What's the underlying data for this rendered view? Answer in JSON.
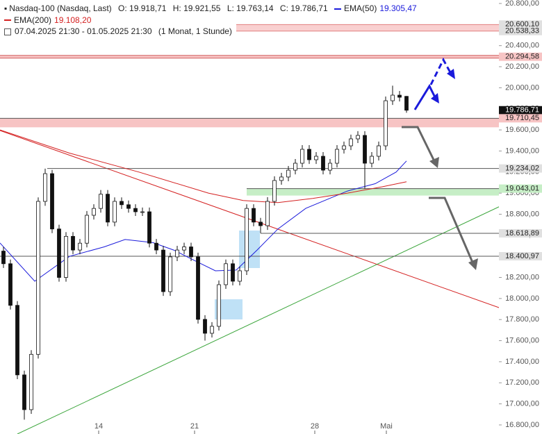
{
  "chart_data": {
    "type": "candlestick",
    "title": "Nasdaq-100 (Nasdaq, Last)",
    "ohlc_text": [
      "O: 19.918,71",
      "H: 19.921,55",
      "L: 19.763,14",
      "C: 19.786,71"
    ],
    "period": "07.04.2025 21:30 - 01.05.2025 21:30",
    "interval": "(1 Monat, 1 Stunde)",
    "x": [
      1,
      3,
      5,
      7,
      9,
      11,
      13,
      15,
      17,
      19,
      21,
      23,
      25,
      27,
      29,
      31,
      33,
      35,
      37,
      39,
      41,
      43,
      45,
      47,
      49,
      51,
      53,
      55,
      57,
      59,
      61,
      63,
      65,
      67,
      69,
      71,
      73,
      75,
      77,
      79,
      81,
      83,
      85,
      87,
      89,
      91,
      93,
      95,
      97,
      99,
      101,
      103,
      105,
      107,
      109,
      111,
      113,
      115,
      117
    ],
    "open": [
      18450,
      18330,
      17935,
      17275,
      16945,
      17470,
      18922,
      19185,
      18660,
      18200,
      18590,
      18460,
      18525,
      18790,
      18855,
      18990,
      18725,
      18922,
      18890,
      18855,
      18823,
      18823,
      18525,
      18460,
      18065,
      18395,
      18460,
      18490,
      18395,
      17802,
      17670,
      17736,
      18131,
      18330,
      18164,
      18263,
      18855,
      18725,
      18691,
      18922,
      19120,
      19153,
      19218,
      19284,
      19416,
      19317,
      19350,
      19218,
      19284,
      19416,
      19449,
      19515,
      19548,
      19284,
      19350,
      19449,
      19877,
      19930,
      19918.71
    ],
    "high": [
      18490,
      18370,
      17975,
      17315,
      17510,
      18960,
      19232,
      19220,
      18700,
      18630,
      18630,
      18565,
      18830,
      18895,
      19030,
      19030,
      18960,
      18960,
      18930,
      18895,
      18863,
      18863,
      18565,
      18500,
      18435,
      18500,
      18530,
      18530,
      18435,
      17842,
      17776,
      18171,
      18370,
      18370,
      18303,
      18895,
      18895,
      18765,
      18962,
      19160,
      19193,
      19258,
      19324,
      19456,
      19456,
      19390,
      19390,
      19324,
      19456,
      19489,
      19555,
      19588,
      19588,
      19390,
      19489,
      19917,
      20020,
      19970,
      19921.55
    ],
    "low": [
      18290,
      17895,
      17235,
      16850,
      16905,
      17430,
      18880,
      18620,
      18160,
      18160,
      18420,
      18420,
      18485,
      18750,
      18815,
      18685,
      18685,
      18850,
      18815,
      18783,
      18783,
      18485,
      18420,
      18025,
      18025,
      18355,
      18420,
      18355,
      17762,
      17600,
      17630,
      17696,
      18091,
      18124,
      18124,
      18223,
      18685,
      18620,
      18651,
      18882,
      19080,
      19113,
      19178,
      19244,
      19277,
      19277,
      19178,
      19178,
      19244,
      19376,
      19409,
      19475,
      19043,
      19244,
      19310,
      19409,
      19837,
      19870,
      19763.14
    ],
    "close": [
      18330,
      17935,
      17275,
      16945,
      17470,
      18922,
      19185,
      18660,
      18200,
      18590,
      18460,
      18525,
      18790,
      18855,
      18990,
      18725,
      18922,
      18890,
      18855,
      18823,
      18823,
      18525,
      18460,
      18065,
      18395,
      18460,
      18490,
      18395,
      17802,
      17670,
      17736,
      18131,
      18330,
      18164,
      18263,
      18855,
      18725,
      18691,
      18922,
      19120,
      19153,
      19218,
      19284,
      19416,
      19317,
      19350,
      19218,
      19284,
      19416,
      19449,
      19515,
      19548,
      19284,
      19350,
      19449,
      19877,
      19930,
      19910,
      19786.71
    ],
    "series": [
      {
        "name": "EMA(50)",
        "color": "#1a1adb",
        "value_label": "19.305,47",
        "x": [
          0,
          10,
          20,
          30,
          36,
          44,
          50,
          56,
          62,
          68,
          74,
          80,
          88,
          100,
          108,
          114,
          117
        ],
        "values": [
          18527,
          18164,
          18400,
          18490,
          18560,
          18530,
          18460,
          18360,
          18263,
          18270,
          18460,
          18660,
          18855,
          19020,
          19090,
          19200,
          19305.47
        ]
      },
      {
        "name": "EMA(200)",
        "color": "#d42020",
        "value_label": "19.108,20",
        "x": [
          0,
          20,
          40,
          60,
          70,
          80,
          90,
          100,
          110,
          117
        ],
        "values": [
          19600,
          19380,
          19200,
          19000,
          18930,
          18910,
          18950,
          19000,
          19060,
          19108.2
        ]
      }
    ],
    "levels": [
      {
        "value": 20600.1,
        "label": "20.600,10",
        "style": "band"
      },
      {
        "value": 20538.33,
        "label": "20.538,33",
        "style": "band"
      },
      {
        "value": 20294.58,
        "label": "20.294,58",
        "style": "resistance"
      },
      {
        "value": 19786.71,
        "label": "19.786,71",
        "style": "price"
      },
      {
        "value": 19710.45,
        "label": "19.710,45",
        "style": "zone"
      },
      {
        "value": 19234.02,
        "label": "19.234,02",
        "style": "line"
      },
      {
        "value": 19043.01,
        "label": "19.043,01",
        "style": "support"
      },
      {
        "value": 18618.89,
        "label": "18.618,89",
        "style": "line"
      },
      {
        "value": 18400.97,
        "label": "18.400,97",
        "style": "line"
      }
    ],
    "xlim": [
      0,
      143.6
    ],
    "xticks": [
      {
        "value": 28.4,
        "label": "14"
      },
      {
        "value": 56,
        "label": "21"
      },
      {
        "value": 90.6,
        "label": "28"
      },
      {
        "value": 111.2,
        "label": "Mai"
      }
    ],
    "ylim": [
      16714,
      20833
    ],
    "yticks": [
      {
        "value": 16800,
        "label": "16.800,00"
      },
      {
        "value": 17000,
        "label": "17.000,00"
      },
      {
        "value": 17200,
        "label": "17.200,00"
      },
      {
        "value": 17400,
        "label": "17.400,00"
      },
      {
        "value": 17600,
        "label": "17.600,00"
      },
      {
        "value": 17800,
        "label": "17.800,00"
      },
      {
        "value": 18000,
        "label": "18.000,00"
      },
      {
        "value": 18200,
        "label": "18.200,00"
      },
      {
        "value": 18400,
        "label": "18.400,00"
      },
      {
        "value": 18600,
        "label": "18.600,00"
      },
      {
        "value": 18800,
        "label": "18.800,00"
      },
      {
        "value": 19000,
        "label": "19.000,00"
      },
      {
        "value": 19200,
        "label": "19.200,00"
      },
      {
        "value": 19400,
        "label": "19.400,00"
      },
      {
        "value": 19600,
        "label": "19.600,00"
      },
      {
        "value": 19800,
        "label": "19.800,00"
      },
      {
        "value": 20000,
        "label": "20.000,00"
      },
      {
        "value": 20200,
        "label": "20.200,00"
      },
      {
        "value": 20400,
        "label": "20.400,00"
      },
      {
        "value": 20600,
        "label": "20.600,00"
      },
      {
        "value": 20800,
        "label": "20.800,00"
      }
    ]
  }
}
